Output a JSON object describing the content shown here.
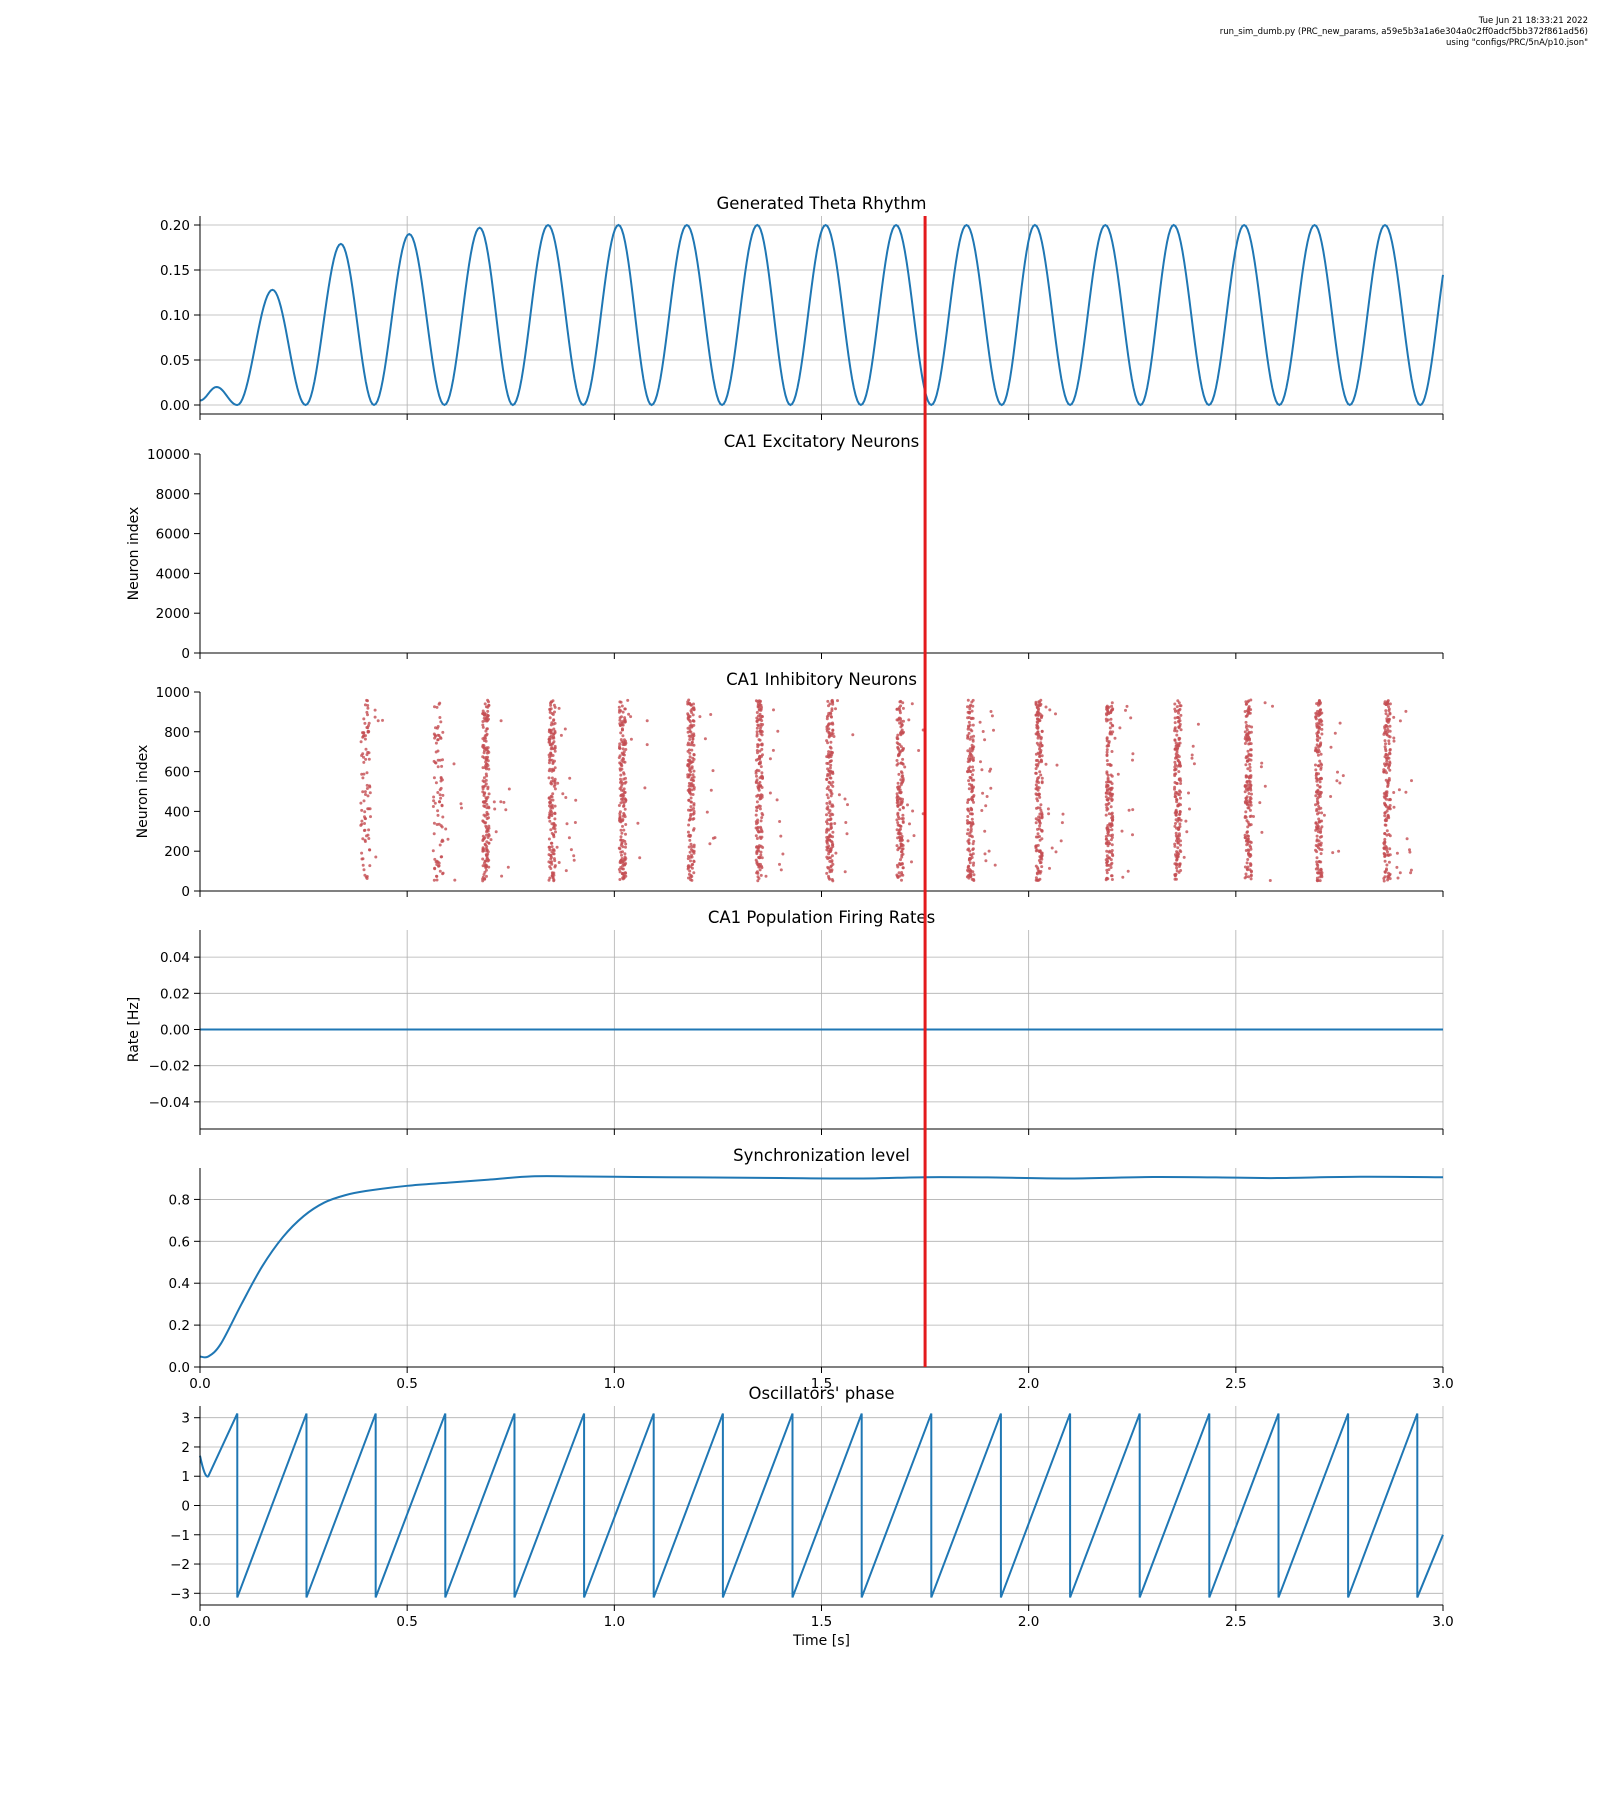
{
  "meta": {
    "line1": "Tue Jun 21 18:33:21 2022",
    "line2": "run_sim_dumb.py (PRC_new_params, a59e5b3a1a6e304a0c2ff0adcf5bb372f861ad56)",
    "line3": "using \"configs/PRC/5nA/p10.json\""
  },
  "colors": {
    "line": "#1f77b4",
    "marker": "#e31a1c",
    "spikes": "#c44e52",
    "grid": "#b0b0b0"
  },
  "marker_time": 1.75,
  "xlabel": "Time [s]",
  "chart_data": [
    {
      "type": "line",
      "title": "Generated Theta Rhythm",
      "xlabel": "",
      "ylabel": "",
      "xlim": [
        0,
        3.0
      ],
      "ylim": [
        -0.01,
        0.21
      ],
      "yticks": [
        "0.00",
        "0.05",
        "0.10",
        "0.15",
        "0.20"
      ],
      "grid": true,
      "peaks_t": [
        0.04,
        0.175,
        0.34,
        0.505,
        0.675,
        0.84,
        1.01,
        1.175,
        1.345,
        1.51,
        1.68,
        1.85,
        2.015,
        2.185,
        2.35,
        2.52,
        2.69,
        2.86
      ],
      "peaks_v": [
        0.02,
        0.128,
        0.179,
        0.19,
        0.197,
        0.2,
        0.2,
        0.2,
        0.2,
        0.2,
        0.2,
        0.2,
        0.2,
        0.2,
        0.2,
        0.2,
        0.2,
        0.2
      ],
      "troughs_t": [
        0.0,
        0.09,
        0.255,
        0.42,
        0.59,
        0.755,
        0.925,
        1.09,
        1.26,
        1.425,
        1.595,
        1.765,
        1.935,
        2.1,
        2.27,
        2.435,
        2.605,
        2.775,
        2.945
      ],
      "end_value": [
        3.0,
        0.15
      ]
    },
    {
      "type": "scatter",
      "title": "CA1 Excitatory Neurons",
      "xlabel": "",
      "ylabel": "Neuron index",
      "xlim": [
        0,
        3.0
      ],
      "ylim": [
        0,
        10000
      ],
      "yticks": [
        "0",
        "2000",
        "4000",
        "6000",
        "8000",
        "10000"
      ],
      "grid": false,
      "spike_times": []
    },
    {
      "type": "scatter",
      "title": "CA1 Inhibitory Neurons",
      "xlabel": "",
      "ylabel": "Neuron index",
      "xlim": [
        0,
        3.0
      ],
      "ylim": [
        0,
        1000
      ],
      "yticks": [
        "0",
        "200",
        "400",
        "600",
        "800",
        "1000"
      ],
      "grid": false,
      "bursts_t": [
        0.4,
        0.575,
        0.69,
        0.85,
        1.02,
        1.185,
        1.35,
        1.52,
        1.69,
        1.86,
        2.025,
        2.195,
        2.36,
        2.53,
        2.7,
        2.865
      ],
      "neuron_range": [
        50,
        960
      ]
    },
    {
      "type": "line",
      "title": "CA1 Population Firing Rates",
      "xlabel": "",
      "ylabel": "Rate [Hz]",
      "xlim": [
        0,
        3.0
      ],
      "ylim": [
        -0.055,
        0.055
      ],
      "yticks": [
        "−0.04",
        "−0.02",
        "0.00",
        "0.02",
        "0.04"
      ],
      "grid": true,
      "x": [
        0,
        3.0
      ],
      "y": [
        0,
        0
      ]
    },
    {
      "type": "line",
      "title": "Synchronization level",
      "xlabel": "",
      "ylabel": "",
      "xlim": [
        0,
        3.0
      ],
      "ylim": [
        0,
        0.95
      ],
      "yticks": [
        "0.0",
        "0.2",
        "0.4",
        "0.6",
        "0.8"
      ],
      "xticks": [
        "0.0",
        "0.5",
        "1.0",
        "1.5",
        "2.0",
        "2.5",
        "3.0"
      ],
      "grid": true,
      "x": [
        0,
        0.02,
        0.05,
        0.1,
        0.15,
        0.2,
        0.25,
        0.3,
        0.35,
        0.4,
        0.5,
        0.6,
        0.7,
        0.8,
        0.9,
        1.0,
        1.2,
        1.4,
        1.6,
        1.75,
        1.9,
        2.1,
        2.3,
        2.5,
        2.6,
        2.8,
        3.0
      ],
      "y": [
        0.05,
        0.05,
        0.11,
        0.3,
        0.48,
        0.62,
        0.72,
        0.785,
        0.82,
        0.84,
        0.865,
        0.88,
        0.895,
        0.91,
        0.91,
        0.908,
        0.905,
        0.902,
        0.9,
        0.906,
        0.905,
        0.9,
        0.907,
        0.904,
        0.902,
        0.908,
        0.906
      ]
    },
    {
      "type": "line",
      "title": "Oscillators' phase",
      "xlabel": "Time [s]",
      "ylabel": "",
      "xlim": [
        0,
        3.0
      ],
      "ylim": [
        -3.4,
        3.4
      ],
      "yticks": [
        "−3",
        "−2",
        "−1",
        "0",
        "1",
        "2",
        "3"
      ],
      "xticks": [
        "0.0",
        "0.5",
        "1.0",
        "1.5",
        "2.0",
        "2.5",
        "3.0"
      ],
      "grid": true,
      "wrap_t": [
        0.09,
        0.257,
        0.424,
        0.592,
        0.759,
        0.927,
        1.095,
        1.262,
        1.43,
        1.597,
        1.765,
        1.933,
        2.1,
        2.268,
        2.436,
        2.603,
        2.771,
        2.938
      ],
      "start": [
        [
          0,
          1.7
        ],
        [
          0.02,
          1.0
        ]
      ],
      "end_value": [
        3.0,
        -1.0
      ]
    }
  ]
}
